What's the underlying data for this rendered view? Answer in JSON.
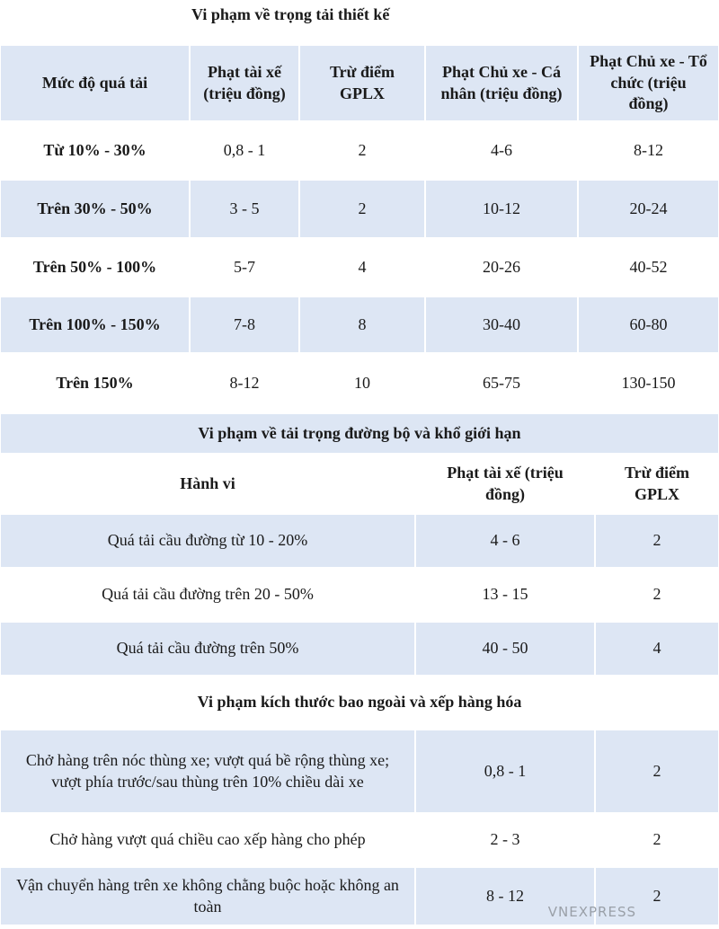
{
  "title": "Vi phạm về trọng tải thiết kế",
  "table1": {
    "header": [
      "Mức độ quá tải",
      "Phạt tài xế (triệu đồng)",
      "Trừ điểm GPLX",
      "Phạt Chủ xe - Cá nhân (triệu đồng)",
      "Phạt Chủ xe - Tổ chức (triệu đồng)"
    ],
    "rows": [
      [
        "Từ 10% - 30%",
        "0,8 - 1",
        "2",
        "4-6",
        "8-12"
      ],
      [
        "Trên 30% - 50%",
        "3 - 5",
        "2",
        "10-12",
        "20-24"
      ],
      [
        "Trên 50% - 100%",
        "5-7",
        "4",
        "20-26",
        "40-52"
      ],
      [
        "Trên 100% - 150%",
        "7-8",
        "8",
        "30-40",
        "60-80"
      ],
      [
        "Trên 150%",
        "8-12",
        "10",
        "65-75",
        "130-150"
      ]
    ]
  },
  "section2": {
    "title": "Vi phạm về tải trọng đường bộ và khổ giới hạn",
    "header": [
      "Hành vi",
      "Phạt tài xế (triệu đồng)",
      "Trừ điểm GPLX"
    ],
    "rows": [
      [
        "Quá tải cầu đường từ 10 - 20%",
        "4 - 6",
        "2"
      ],
      [
        "Quá tải cầu đường  trên 20 - 50%",
        "13 - 15",
        "2"
      ],
      [
        "Quá tải cầu đường trên 50%",
        "40 - 50",
        "4"
      ]
    ]
  },
  "section3": {
    "title": "Vi phạm kích thước bao ngoài và xếp hàng hóa",
    "rows": [
      [
        "Chở hàng trên nóc thùng xe; vượt quá bề rộng thùng xe; vượt phía trước/sau thùng trên 10% chiều dài xe",
        "0,8 - 1",
        "2"
      ],
      [
        "Chở hàng vượt quá chiều cao xếp hàng cho phép",
        "2 - 3",
        "2"
      ],
      [
        "Vận chuyển hàng trên xe không chằng buộc hoặc không an toàn",
        "8 - 12",
        "2"
      ]
    ]
  },
  "watermark": "VNEXPRESS"
}
